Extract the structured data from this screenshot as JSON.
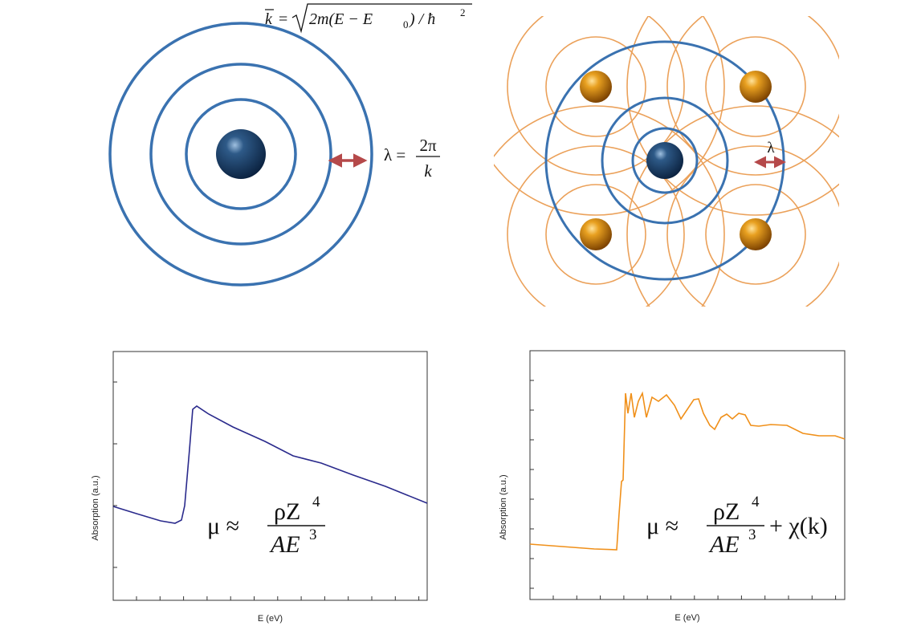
{
  "wave_formula": {
    "vector": "k",
    "equals": "= ",
    "radicand": "2m(E − E",
    "sub": "0",
    "rest": ") / ħ",
    "sup": "2"
  },
  "wavelength_formula": {
    "symbol": "λ =",
    "numerator": "2π",
    "denominator": "k"
  },
  "lattice_label": "λ",
  "plots": [
    {
      "y_label": "Absorption (a.u.)",
      "x_label": "E (eV)",
      "formula": {
        "mu": "μ ≈",
        "numerator": "ρZ",
        "numerator_power": "4",
        "denominator": "AE",
        "denominator_power": "3"
      }
    },
    {
      "y_label": "Absorption (a.u.)",
      "x_label": "E (eV)",
      "formula": {
        "mu": "μ ≈",
        "numerator": "ρZ",
        "numerator_power": "4",
        "denominator": "AE",
        "denominator_power": "3",
        "extra": "+ χ(k)"
      }
    }
  ]
}
